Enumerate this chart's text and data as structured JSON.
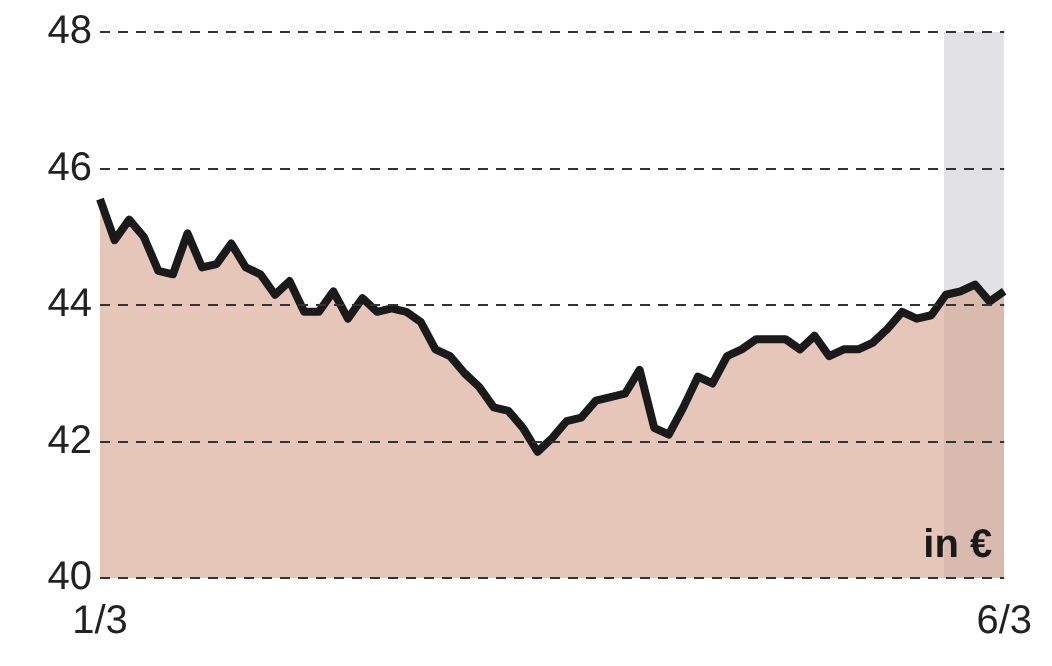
{
  "chart_data": {
    "type": "area",
    "categories": [
      "1/3",
      null,
      null,
      null,
      null,
      null,
      null,
      null,
      null,
      null,
      null,
      null,
      null,
      null,
      null,
      null,
      null,
      null,
      null,
      null,
      null,
      null,
      null,
      null,
      null,
      null,
      null,
      null,
      null,
      null,
      null,
      null,
      null,
      null,
      null,
      null,
      null,
      null,
      null,
      null,
      null,
      null,
      null,
      null,
      null,
      null,
      null,
      null,
      null,
      null,
      null,
      null,
      null,
      null,
      null,
      null,
      null,
      null,
      null,
      null,
      null,
      null,
      "6/3"
    ],
    "series": [
      {
        "color": "#1a1a1a",
        "values": [
          45.55,
          44.95,
          45.25,
          45.0,
          44.5,
          44.45,
          45.05,
          44.55,
          44.6,
          44.9,
          44.55,
          44.45,
          44.15,
          44.35,
          43.9,
          43.9,
          44.2,
          43.8,
          44.1,
          43.9,
          43.95,
          43.9,
          43.75,
          43.35,
          43.25,
          43.0,
          42.8,
          42.5,
          42.45,
          42.2,
          41.85,
          42.05,
          42.3,
          42.35,
          42.6,
          42.65,
          42.7,
          43.05,
          42.2,
          42.1,
          42.5,
          42.95,
          42.85,
          43.25,
          43.35,
          43.5,
          43.5,
          43.5,
          43.35,
          43.55,
          43.25,
          43.35,
          43.35,
          43.45,
          43.65,
          43.9,
          43.8,
          43.85,
          44.15,
          44.2,
          44.3,
          44.05,
          44.2
        ]
      }
    ],
    "ylim": [
      40,
      48
    ],
    "yticks": [
      40,
      42,
      44,
      46,
      48
    ],
    "grid": "y",
    "legend": false,
    "annotations": [
      "in €"
    ]
  }
}
